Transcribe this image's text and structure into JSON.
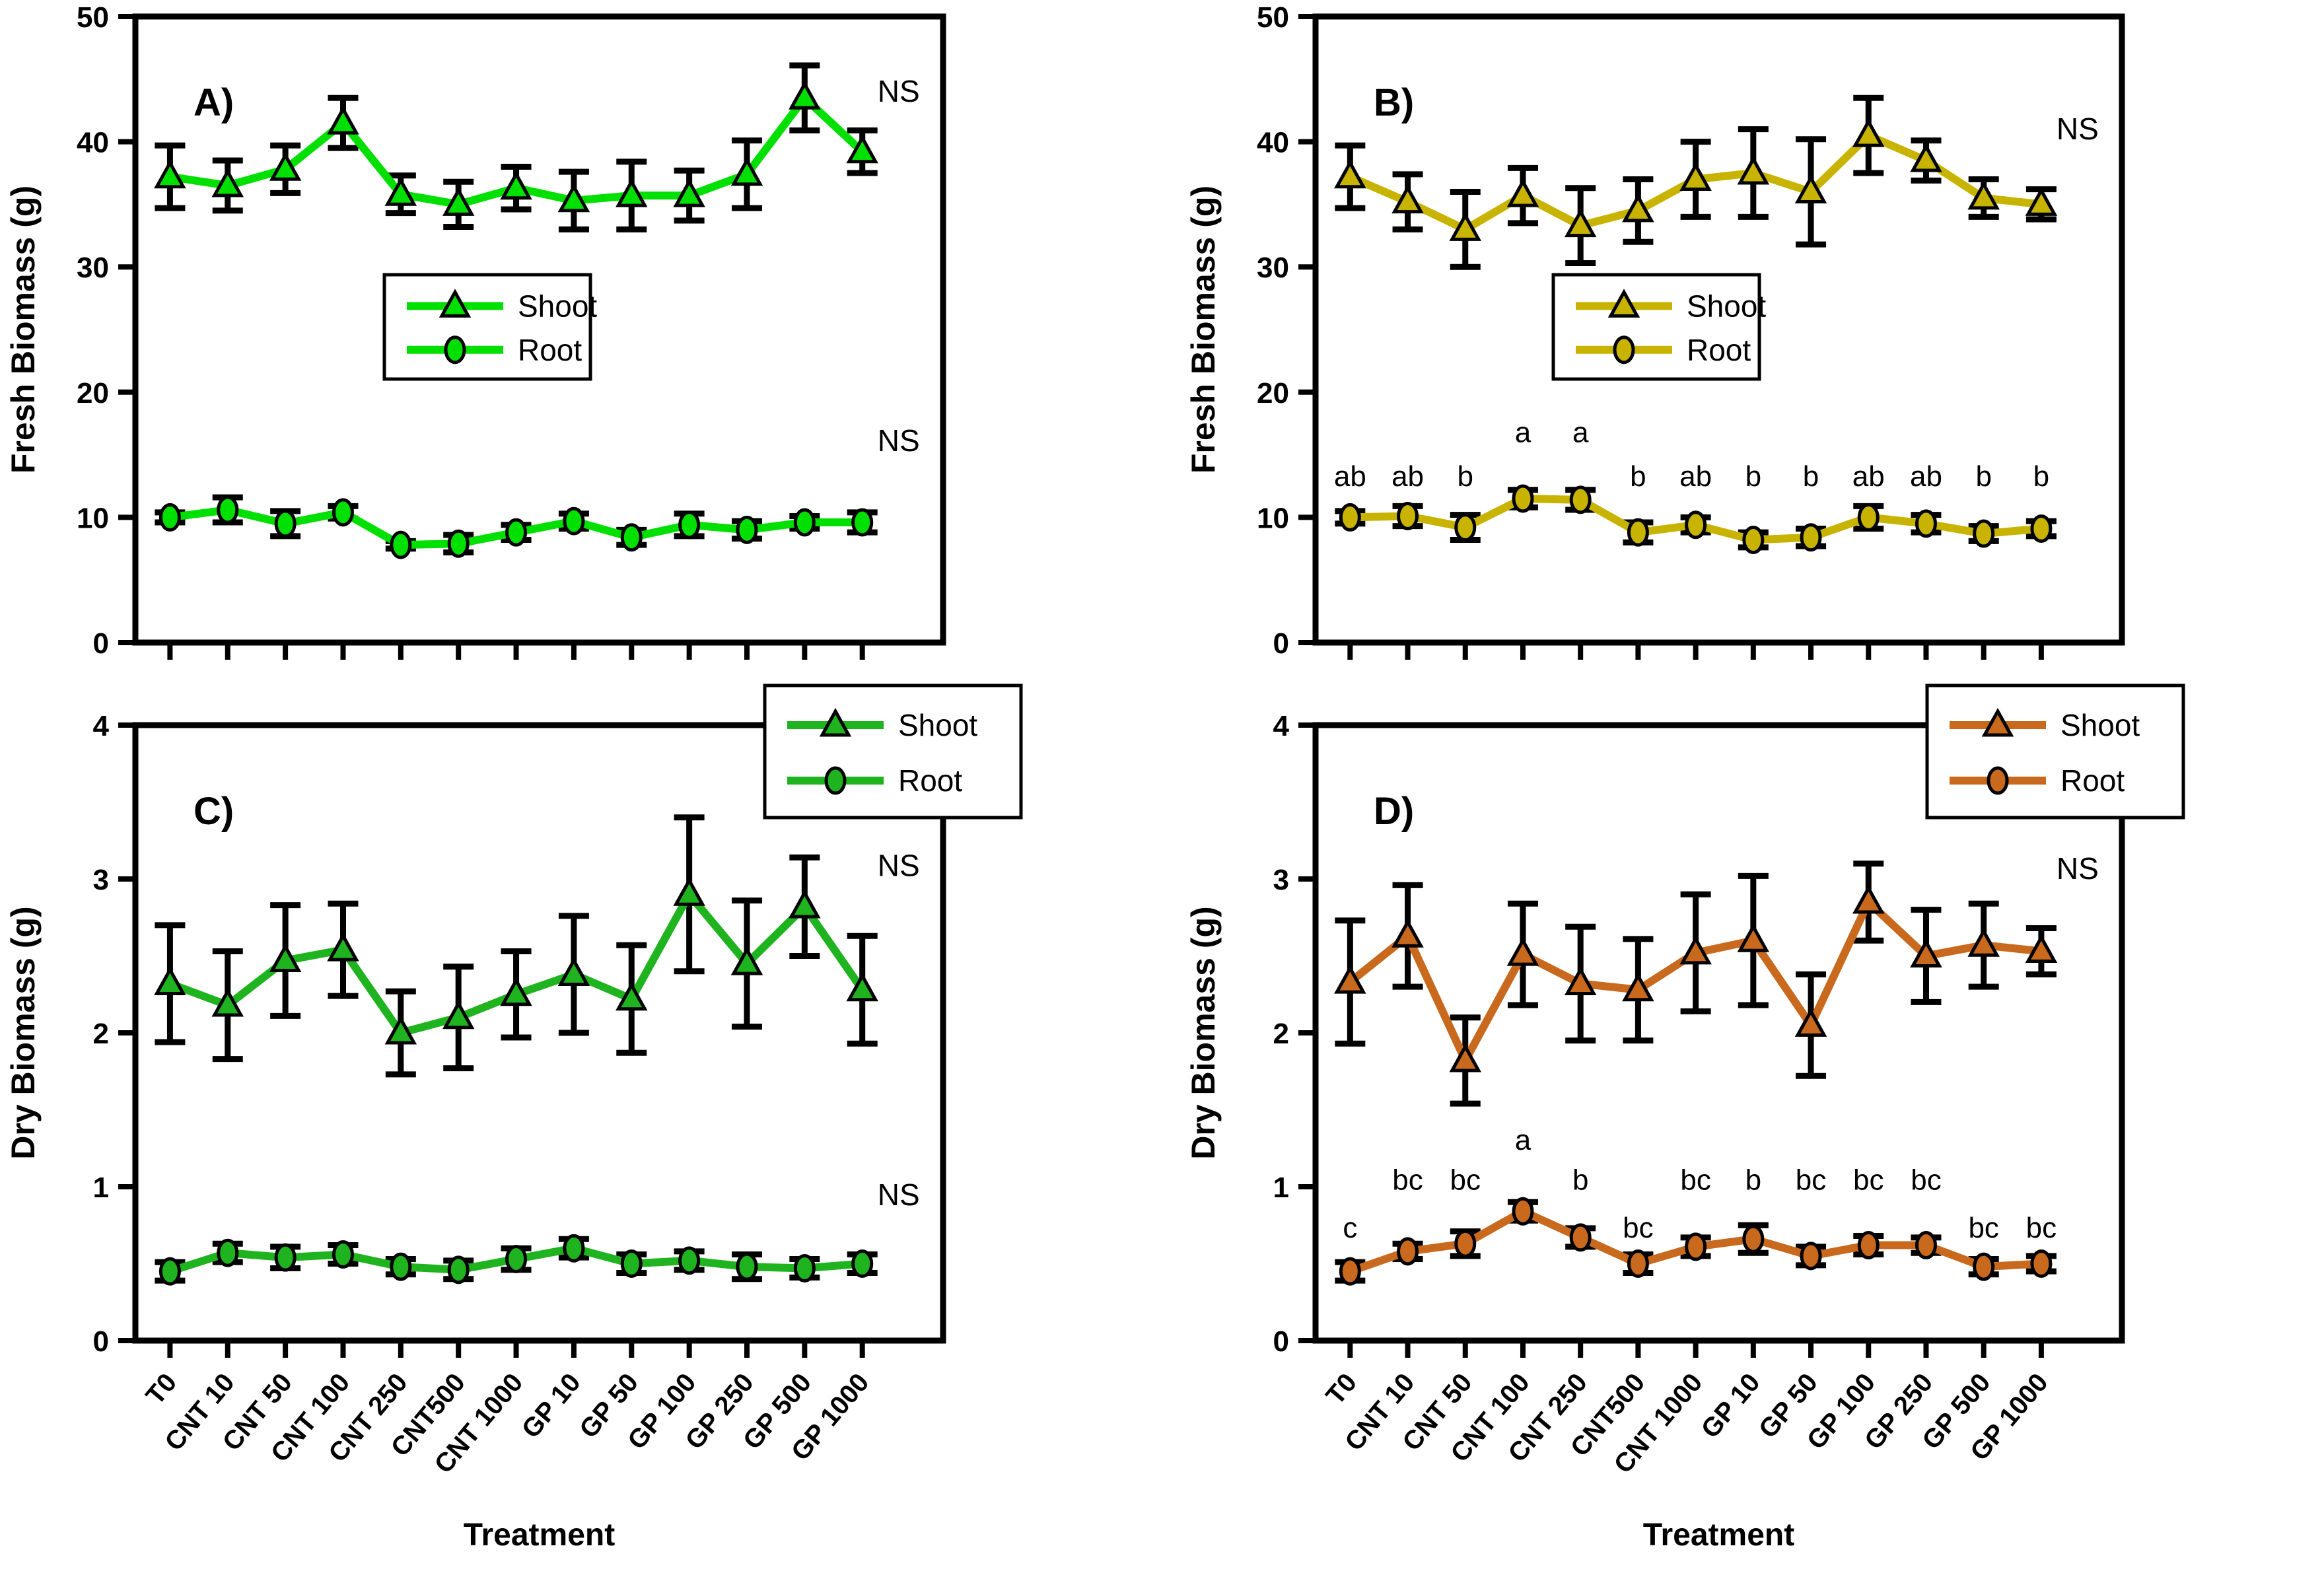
{
  "figure": {
    "description": "Four-panel line chart figure of plant biomass responses to treatments",
    "panel_labels": [
      "A)",
      "B)",
      "C)",
      "D)"
    ],
    "not_significant_label": "NS",
    "legend_labels": {
      "shoot": "Shoot",
      "root": "Root"
    }
  },
  "chart_data": {
    "type": "line",
    "xlabel": "Treatment",
    "categories": [
      "T0",
      "CNT 10",
      "CNT 50",
      "CNT 100",
      "CNT 250",
      "CNT500",
      "CNT 1000",
      "GP 10",
      "GP 50",
      "GP 100",
      "GP 250",
      "GP 500",
      "GP 1000"
    ],
    "panels": [
      {
        "id": "A",
        "label": "A)",
        "ylabel": "Fresh Biomass (g)",
        "ylim": [
          0,
          50
        ],
        "yticks": [
          0,
          10,
          20,
          30,
          40,
          50
        ],
        "color": "#00E000",
        "grid": false,
        "legend_position": "center-left",
        "series": [
          {
            "name": "Shoot",
            "marker": "triangle",
            "values": [
              37.2,
              36.5,
              37.8,
              41.5,
              35.8,
              35.0,
              36.3,
              35.3,
              35.7,
              35.7,
              37.4,
              43.5,
              39.2
            ],
            "errors": [
              2.5,
              2.0,
              1.9,
              2.0,
              1.5,
              1.8,
              1.7,
              2.3,
              2.7,
              2.0,
              2.7,
              2.6,
              1.7
            ]
          },
          {
            "name": "Root",
            "marker": "circle",
            "values": [
              10.0,
              10.6,
              9.5,
              10.4,
              7.8,
              7.9,
              8.8,
              9.7,
              8.4,
              9.4,
              9.0,
              9.6,
              9.6
            ],
            "errors": [
              0.4,
              1.0,
              1.0,
              0.5,
              0.3,
              0.7,
              0.6,
              0.6,
              0.6,
              0.9,
              0.7,
              0.5,
              0.8
            ]
          }
        ],
        "annotations": [
          {
            "text": "NS",
            "y": 43.2
          },
          {
            "text": "NS",
            "y": 15.3
          }
        ]
      },
      {
        "id": "B",
        "label": "B)",
        "ylabel": "Fresh Biomass (g)",
        "ylim": [
          0,
          50
        ],
        "yticks": [
          0,
          10,
          20,
          30,
          40,
          50
        ],
        "color": "#C8B400",
        "grid": false,
        "legend_position": "center-left",
        "series": [
          {
            "name": "Shoot",
            "marker": "triangle",
            "values": [
              37.2,
              35.2,
              33.0,
              35.7,
              33.3,
              34.5,
              37.0,
              37.5,
              36.0,
              40.5,
              38.5,
              35.5,
              35.0
            ],
            "errors": [
              2.5,
              2.2,
              3.0,
              2.2,
              3.0,
              2.5,
              3.0,
              3.5,
              4.2,
              3.0,
              1.6,
              1.5,
              1.2
            ]
          },
          {
            "name": "Root",
            "marker": "circle",
            "values": [
              10.0,
              10.1,
              9.2,
              11.5,
              11.4,
              8.8,
              9.4,
              8.2,
              8.4,
              10.0,
              9.5,
              8.7,
              9.1
            ],
            "errors": [
              0.5,
              0.8,
              1.0,
              0.7,
              0.8,
              0.8,
              0.6,
              0.6,
              0.7,
              0.9,
              0.7,
              0.6,
              0.6
            ],
            "letters": [
              "ab",
              "ab",
              "b",
              "a",
              "a",
              "b",
              "ab",
              "b",
              "b",
              "ab",
              "ab",
              "b",
              "b"
            ],
            "letters_y": [
              12.5,
              12.5,
              12.5,
              16.0,
              16.0,
              12.5,
              12.5,
              12.5,
              12.5,
              12.5,
              12.5,
              12.5,
              12.5
            ]
          }
        ],
        "annotations": [
          {
            "text": "NS",
            "y": 40.2
          }
        ]
      },
      {
        "id": "C",
        "label": "C)",
        "ylabel": "Dry Biomass (g)",
        "ylim": [
          0,
          4
        ],
        "yticks": [
          0,
          1,
          2,
          3,
          4
        ],
        "color": "#1FB41F",
        "grid": false,
        "legend_position": "top-center",
        "series": [
          {
            "name": "Shoot",
            "marker": "triangle",
            "values": [
              2.32,
              2.18,
              2.47,
              2.54,
              2.0,
              2.1,
              2.25,
              2.38,
              2.22,
              2.9,
              2.45,
              2.82,
              2.28
            ],
            "errors": [
              0.38,
              0.35,
              0.36,
              0.3,
              0.27,
              0.33,
              0.28,
              0.38,
              0.35,
              0.5,
              0.41,
              0.32,
              0.35
            ]
          },
          {
            "name": "Root",
            "marker": "circle",
            "values": [
              0.45,
              0.57,
              0.54,
              0.56,
              0.48,
              0.46,
              0.53,
              0.6,
              0.5,
              0.52,
              0.48,
              0.47,
              0.5
            ],
            "errors": [
              0.06,
              0.06,
              0.07,
              0.06,
              0.05,
              0.06,
              0.07,
              0.06,
              0.06,
              0.06,
              0.08,
              0.06,
              0.06
            ]
          }
        ],
        "annotations": [
          {
            "text": "NS",
            "y": 3.02
          },
          {
            "text": "NS",
            "y": 0.88
          }
        ]
      },
      {
        "id": "D",
        "label": "D)",
        "ylabel": "Dry Biomass (g)",
        "ylim": [
          0,
          4
        ],
        "yticks": [
          0,
          1,
          2,
          3,
          4
        ],
        "color": "#C8691E",
        "grid": false,
        "legend_position": "top-right",
        "series": [
          {
            "name": "Shoot",
            "marker": "triangle",
            "values": [
              2.33,
              2.63,
              1.82,
              2.51,
              2.32,
              2.28,
              2.52,
              2.6,
              2.05,
              2.85,
              2.5,
              2.57,
              2.53
            ],
            "errors": [
              0.4,
              0.33,
              0.28,
              0.33,
              0.37,
              0.33,
              0.38,
              0.42,
              0.33,
              0.25,
              0.3,
              0.27,
              0.15
            ]
          },
          {
            "name": "Root",
            "marker": "circle",
            "values": [
              0.45,
              0.58,
              0.63,
              0.84,
              0.67,
              0.5,
              0.61,
              0.66,
              0.55,
              0.62,
              0.62,
              0.48,
              0.5
            ],
            "errors": [
              0.06,
              0.05,
              0.08,
              0.06,
              0.06,
              0.06,
              0.06,
              0.09,
              0.06,
              0.06,
              0.05,
              0.05,
              0.05
            ],
            "letters": [
              "c",
              "bc",
              "bc",
              "a",
              "b",
              "bc",
              "bc",
              "b",
              "bc",
              "bc",
              "bc",
              "bc",
              "bc"
            ],
            "letters_y": [
              0.67,
              0.98,
              0.98,
              1.24,
              0.98,
              0.67,
              0.98,
              0.98,
              0.98,
              0.98,
              0.98,
              0.67,
              0.67
            ]
          }
        ],
        "annotations": [
          {
            "text": "NS",
            "y": 3.0
          }
        ]
      }
    ]
  }
}
